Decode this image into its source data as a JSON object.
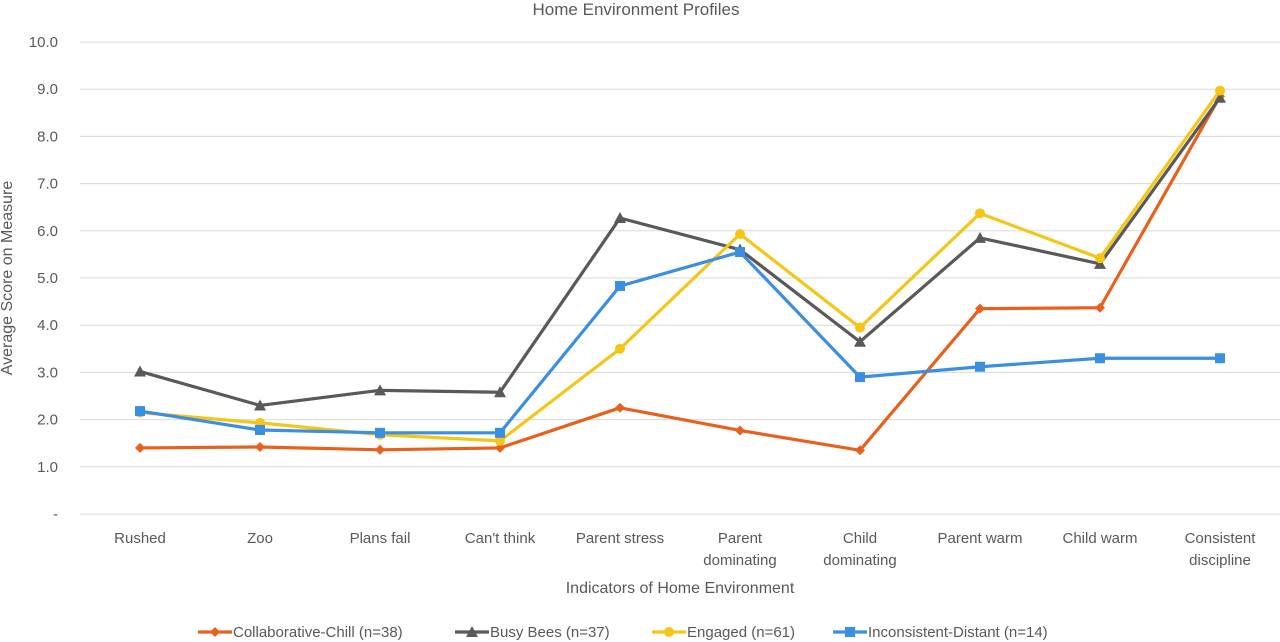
{
  "chart_data": {
    "type": "line",
    "title": "Home Environment Profiles",
    "xlabel": "Indicators of Home Environment",
    "ylabel": "Average Score on Measure",
    "ylim": [
      0,
      10
    ],
    "yticks": [
      "-",
      "1.0",
      "2.0",
      "3.0",
      "4.0",
      "5.0",
      "6.0",
      "7.0",
      "8.0",
      "9.0",
      "10.0"
    ],
    "categories": [
      "Rushed",
      "Zoo",
      "Plans fail",
      "Can't think",
      "Parent stress",
      "Parent dominating",
      "Child dominating",
      "Parent warm",
      "Child warm",
      "Consistent discipline"
    ],
    "category_lines": [
      [
        "Rushed"
      ],
      [
        "Zoo"
      ],
      [
        "Plans fail"
      ],
      [
        "Can't think"
      ],
      [
        "Parent stress"
      ],
      [
        "Parent",
        "dominating"
      ],
      [
        "Child",
        "dominating"
      ],
      [
        "Parent warm"
      ],
      [
        "Child warm"
      ],
      [
        "Consistent",
        "discipline"
      ]
    ],
    "grid": true,
    "legend_position": "bottom",
    "series": [
      {
        "name": "Collaborative-Chill (n=38)",
        "color": "#e8601c",
        "marker": "diamond",
        "values": [
          1.4,
          1.42,
          1.36,
          1.4,
          2.25,
          1.77,
          1.35,
          4.35,
          4.37,
          8.85
        ]
      },
      {
        "name": "Busy Bees (n=37)",
        "color": "#595959",
        "marker": "triangle",
        "values": [
          3.02,
          2.3,
          2.62,
          2.58,
          6.27,
          5.6,
          3.65,
          5.85,
          5.3,
          8.82
        ]
      },
      {
        "name": "Engaged (n=61)",
        "color": "#f5c518",
        "marker": "circle",
        "values": [
          2.15,
          1.93,
          1.68,
          1.55,
          3.5,
          5.93,
          3.95,
          6.37,
          5.42,
          8.97
        ]
      },
      {
        "name": "Inconsistent-Distant (n=14)",
        "color": "#3b8fe0",
        "marker": "square",
        "values": [
          2.18,
          1.78,
          1.72,
          1.72,
          4.83,
          5.55,
          2.9,
          3.12,
          3.3,
          3.3
        ]
      }
    ]
  }
}
